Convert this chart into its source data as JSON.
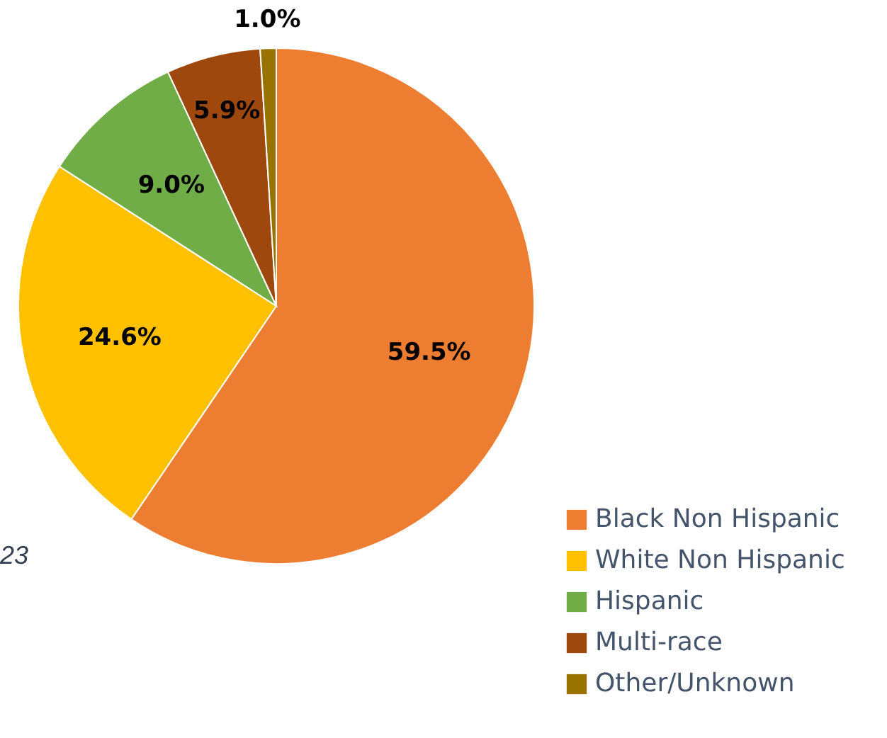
{
  "chart_data": {
    "type": "pie",
    "categories": [
      "Black Non Hispanic",
      "White Non Hispanic",
      "Hispanic",
      "Multi-race",
      "Other/Unknown"
    ],
    "values": [
      59.5,
      24.6,
      9.0,
      5.9,
      1.0
    ],
    "colors": [
      "#ed7d31",
      "#ffc000",
      "#70ad47",
      "#9e480e",
      "#997300"
    ],
    "value_labels": [
      "59.5%",
      "24.6%",
      "9.0%",
      "5.9%",
      "1.0%"
    ],
    "legend": "bottom right",
    "annotations": [
      "23"
    ]
  }
}
